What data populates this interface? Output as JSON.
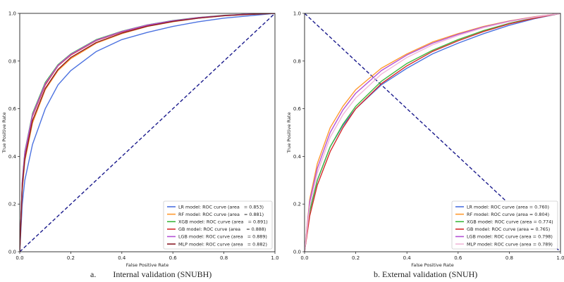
{
  "colors": {
    "LR": "#4c72e0",
    "RF": "#ff9a2e",
    "XGB": "#3fb83f",
    "GB": "#d42b2b",
    "LGB": "#b452d6",
    "MLP": "#8a1c28",
    "MLP_ext": "#f2b8d8",
    "diagonal": "#1a1a8c"
  },
  "captions": {
    "a_label": "a.",
    "a_text": "Internal validation (SNUBH)",
    "b_text": "b. External validation (SNUH)"
  },
  "chart_data": [
    {
      "type": "line",
      "xlabel": "False Positive Rate",
      "ylabel": "True Positive Rate",
      "xlim": [
        0,
        1
      ],
      "ylim": [
        0,
        1
      ],
      "xticks": [
        "0.0",
        "0.2",
        "0.4",
        "0.6",
        "0.8",
        "1.0"
      ],
      "yticks": [
        "0.0",
        "0.2",
        "0.4",
        "0.6",
        "0.8",
        "1.0"
      ],
      "grid": false,
      "legend_position": "lower-right",
      "diagonal": {
        "x": [
          0,
          1
        ],
        "y": [
          0,
          1
        ],
        "style": "dashed"
      },
      "series": [
        {
          "name": "LR model: ROC curve (area   = 0.853)",
          "auc": 0.853,
          "color_key": "LR",
          "x": [
            0,
            0.01,
            0.02,
            0.05,
            0.1,
            0.15,
            0.2,
            0.3,
            0.4,
            0.5,
            0.6,
            0.7,
            0.8,
            0.9,
            1.0
          ],
          "y": [
            0,
            0.2,
            0.3,
            0.45,
            0.6,
            0.7,
            0.76,
            0.84,
            0.89,
            0.92,
            0.945,
            0.965,
            0.98,
            0.99,
            1.0
          ]
        },
        {
          "name": "RF model: ROC curve (area   = 0.881)",
          "auc": 0.881,
          "color_key": "RF",
          "x": [
            0,
            0.01,
            0.02,
            0.05,
            0.1,
            0.15,
            0.2,
            0.3,
            0.4,
            0.5,
            0.6,
            0.7,
            0.8,
            0.9,
            1.0
          ],
          "y": [
            0,
            0.26,
            0.38,
            0.54,
            0.68,
            0.76,
            0.81,
            0.875,
            0.915,
            0.945,
            0.965,
            0.98,
            0.99,
            0.996,
            1.0
          ]
        },
        {
          "name": "XGB model: ROC curve (area   = 0.891)",
          "auc": 0.891,
          "color_key": "XGB",
          "x": [
            0,
            0.01,
            0.02,
            0.05,
            0.1,
            0.15,
            0.2,
            0.3,
            0.4,
            0.5,
            0.6,
            0.7,
            0.8,
            0.9,
            1.0
          ],
          "y": [
            0,
            0.3,
            0.42,
            0.58,
            0.71,
            0.785,
            0.83,
            0.89,
            0.925,
            0.952,
            0.97,
            0.983,
            0.992,
            0.997,
            1.0
          ]
        },
        {
          "name": "GB model: ROC curve (area    = 0.888)",
          "auc": 0.888,
          "color_key": "GB",
          "x": [
            0,
            0.01,
            0.02,
            0.05,
            0.1,
            0.15,
            0.2,
            0.3,
            0.4,
            0.5,
            0.6,
            0.7,
            0.8,
            0.9,
            1.0
          ],
          "y": [
            0,
            0.29,
            0.41,
            0.57,
            0.7,
            0.78,
            0.825,
            0.886,
            0.922,
            0.95,
            0.968,
            0.982,
            0.991,
            0.997,
            1.0
          ]
        },
        {
          "name": "LGB model: ROC curve (area   = 0.889)",
          "auc": 0.889,
          "color_key": "LGB",
          "x": [
            0,
            0.01,
            0.02,
            0.05,
            0.1,
            0.15,
            0.2,
            0.3,
            0.4,
            0.5,
            0.6,
            0.7,
            0.8,
            0.9,
            1.0
          ],
          "y": [
            0,
            0.29,
            0.415,
            0.575,
            0.705,
            0.782,
            0.828,
            0.888,
            0.924,
            0.951,
            0.969,
            0.982,
            0.991,
            0.997,
            1.0
          ]
        },
        {
          "name": "MLP model: ROC curve (area   = 0.882)",
          "auc": 0.882,
          "color_key": "MLP",
          "x": [
            0,
            0.01,
            0.02,
            0.05,
            0.1,
            0.15,
            0.2,
            0.3,
            0.4,
            0.5,
            0.6,
            0.7,
            0.8,
            0.9,
            1.0
          ],
          "y": [
            0,
            0.27,
            0.39,
            0.55,
            0.685,
            0.765,
            0.815,
            0.878,
            0.917,
            0.946,
            0.966,
            0.98,
            0.99,
            0.996,
            1.0
          ]
        }
      ]
    },
    {
      "type": "line",
      "xlabel": "False Positive Rate",
      "ylabel": "True Positive Rate",
      "xlim": [
        0,
        1
      ],
      "ylim": [
        0,
        1
      ],
      "xticks": [
        "0.0",
        "0.2",
        "0.4",
        "0.6",
        "0.8",
        "1.0"
      ],
      "yticks": [
        "0.0",
        "0.2",
        "0.4",
        "0.6",
        "0.8",
        "1.0"
      ],
      "grid": false,
      "legend_position": "lower-right",
      "diagonal": {
        "x": [
          0,
          1
        ],
        "y": [
          1,
          0
        ],
        "style": "dashed"
      },
      "series": [
        {
          "name": "LR model: ROC curve (area = 0.760)",
          "auc": 0.76,
          "color_key": "LR",
          "x": [
            0,
            0.02,
            0.05,
            0.1,
            0.15,
            0.2,
            0.3,
            0.4,
            0.5,
            0.6,
            0.7,
            0.8,
            0.9,
            1.0
          ],
          "y": [
            0,
            0.17,
            0.3,
            0.44,
            0.53,
            0.6,
            0.7,
            0.77,
            0.83,
            0.875,
            0.915,
            0.95,
            0.978,
            1.0
          ]
        },
        {
          "name": "RF model: ROC curve (area = 0.804)",
          "auc": 0.804,
          "color_key": "RF",
          "x": [
            0,
            0.02,
            0.05,
            0.1,
            0.15,
            0.2,
            0.3,
            0.4,
            0.5,
            0.6,
            0.7,
            0.8,
            0.9,
            1.0
          ],
          "y": [
            0,
            0.22,
            0.37,
            0.52,
            0.61,
            0.68,
            0.77,
            0.83,
            0.88,
            0.915,
            0.945,
            0.968,
            0.986,
            1.0
          ]
        },
        {
          "name": "XGB model: ROC curve (area = 0.774)",
          "auc": 0.774,
          "color_key": "XGB",
          "x": [
            0,
            0.02,
            0.05,
            0.1,
            0.15,
            0.2,
            0.3,
            0.4,
            0.5,
            0.6,
            0.7,
            0.8,
            0.9,
            1.0
          ],
          "y": [
            0,
            0.17,
            0.3,
            0.44,
            0.535,
            0.61,
            0.715,
            0.79,
            0.845,
            0.89,
            0.928,
            0.958,
            0.982,
            1.0
          ]
        },
        {
          "name": "GB model: ROC curve (area = 0.765)",
          "auc": 0.765,
          "color_key": "GB",
          "x": [
            0,
            0.02,
            0.05,
            0.1,
            0.15,
            0.2,
            0.3,
            0.4,
            0.5,
            0.6,
            0.7,
            0.8,
            0.9,
            1.0
          ],
          "y": [
            0,
            0.15,
            0.28,
            0.42,
            0.52,
            0.6,
            0.705,
            0.78,
            0.84,
            0.885,
            0.924,
            0.956,
            0.98,
            1.0
          ]
        },
        {
          "name": "LGB model: ROC curve (area = 0.798)",
          "auc": 0.798,
          "color_key": "LGB",
          "x": [
            0,
            0.02,
            0.05,
            0.1,
            0.15,
            0.2,
            0.3,
            0.4,
            0.5,
            0.6,
            0.7,
            0.8,
            0.9,
            1.0
          ],
          "y": [
            0,
            0.21,
            0.35,
            0.5,
            0.595,
            0.665,
            0.76,
            0.825,
            0.875,
            0.912,
            0.943,
            0.967,
            0.985,
            1.0
          ]
        },
        {
          "name": "MLP model: ROC curve (area = 0.789)",
          "auc": 0.789,
          "color_key": "MLP_ext",
          "x": [
            0,
            0.02,
            0.05,
            0.1,
            0.15,
            0.2,
            0.3,
            0.4,
            0.5,
            0.6,
            0.7,
            0.8,
            0.9,
            1.0
          ],
          "y": [
            0,
            0.19,
            0.33,
            0.48,
            0.575,
            0.645,
            0.745,
            0.815,
            0.868,
            0.907,
            0.94,
            0.965,
            0.984,
            1.0
          ]
        }
      ]
    }
  ]
}
